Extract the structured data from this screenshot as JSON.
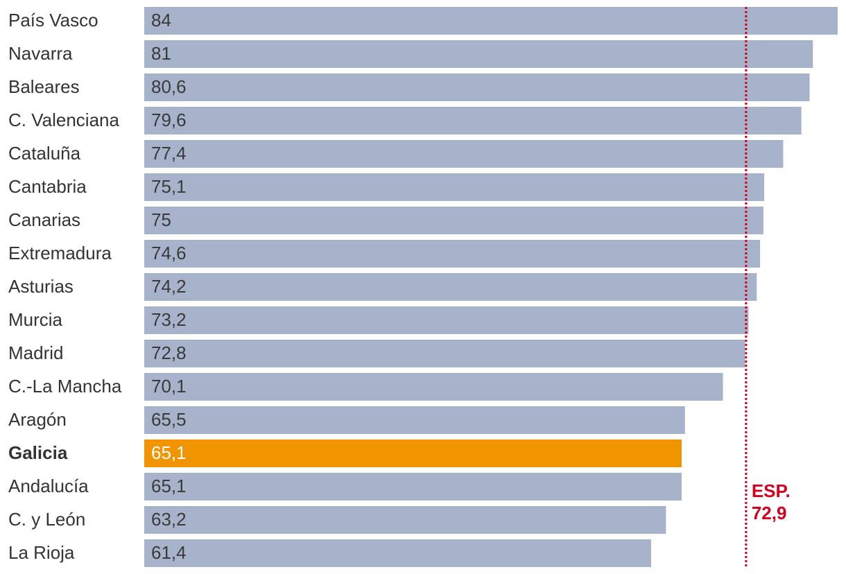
{
  "chart_data": {
    "type": "bar",
    "orientation": "horizontal",
    "categories": [
      "País Vasco",
      "Navarra",
      "Baleares",
      "C. Valenciana",
      "Cataluña",
      "Cantabria",
      "Canarias",
      "Extremadura",
      "Asturias",
      "Murcia",
      "Madrid",
      "C.-La Mancha",
      "Aragón",
      "Galicia",
      "Andalucía",
      "C. y León",
      "La Rioja"
    ],
    "values": [
      84,
      81,
      80.6,
      79.6,
      77.4,
      75.1,
      75,
      74.6,
      74.2,
      73.2,
      72.8,
      70.1,
      65.5,
      65.1,
      65.1,
      63.2,
      61.4
    ],
    "value_labels": [
      "84",
      "81",
      "80,6",
      "79,6",
      "77,4",
      "75,1",
      "75",
      "74,6",
      "74,2",
      "73,2",
      "72,8",
      "70,1",
      "65,5",
      "65,1",
      "65,1",
      "63,2",
      "61,4"
    ],
    "colors": [
      "#a7b3cb",
      "#a7b3cb",
      "#a7b3cb",
      "#a7b3cb",
      "#a7b3cb",
      "#a7b3cb",
      "#a7b3cb",
      "#a7b3cb",
      "#a7b3cb",
      "#a7b3cb",
      "#a7b3cb",
      "#a7b3cb",
      "#a7b3cb",
      "#f09400",
      "#a7b3cb",
      "#a7b3cb",
      "#a7b3cb"
    ],
    "xlim": [
      0,
      84
    ],
    "reference_line": {
      "value": 72.9,
      "label": "ESP.",
      "value_label": "72,9",
      "color": "#d6001c"
    }
  }
}
